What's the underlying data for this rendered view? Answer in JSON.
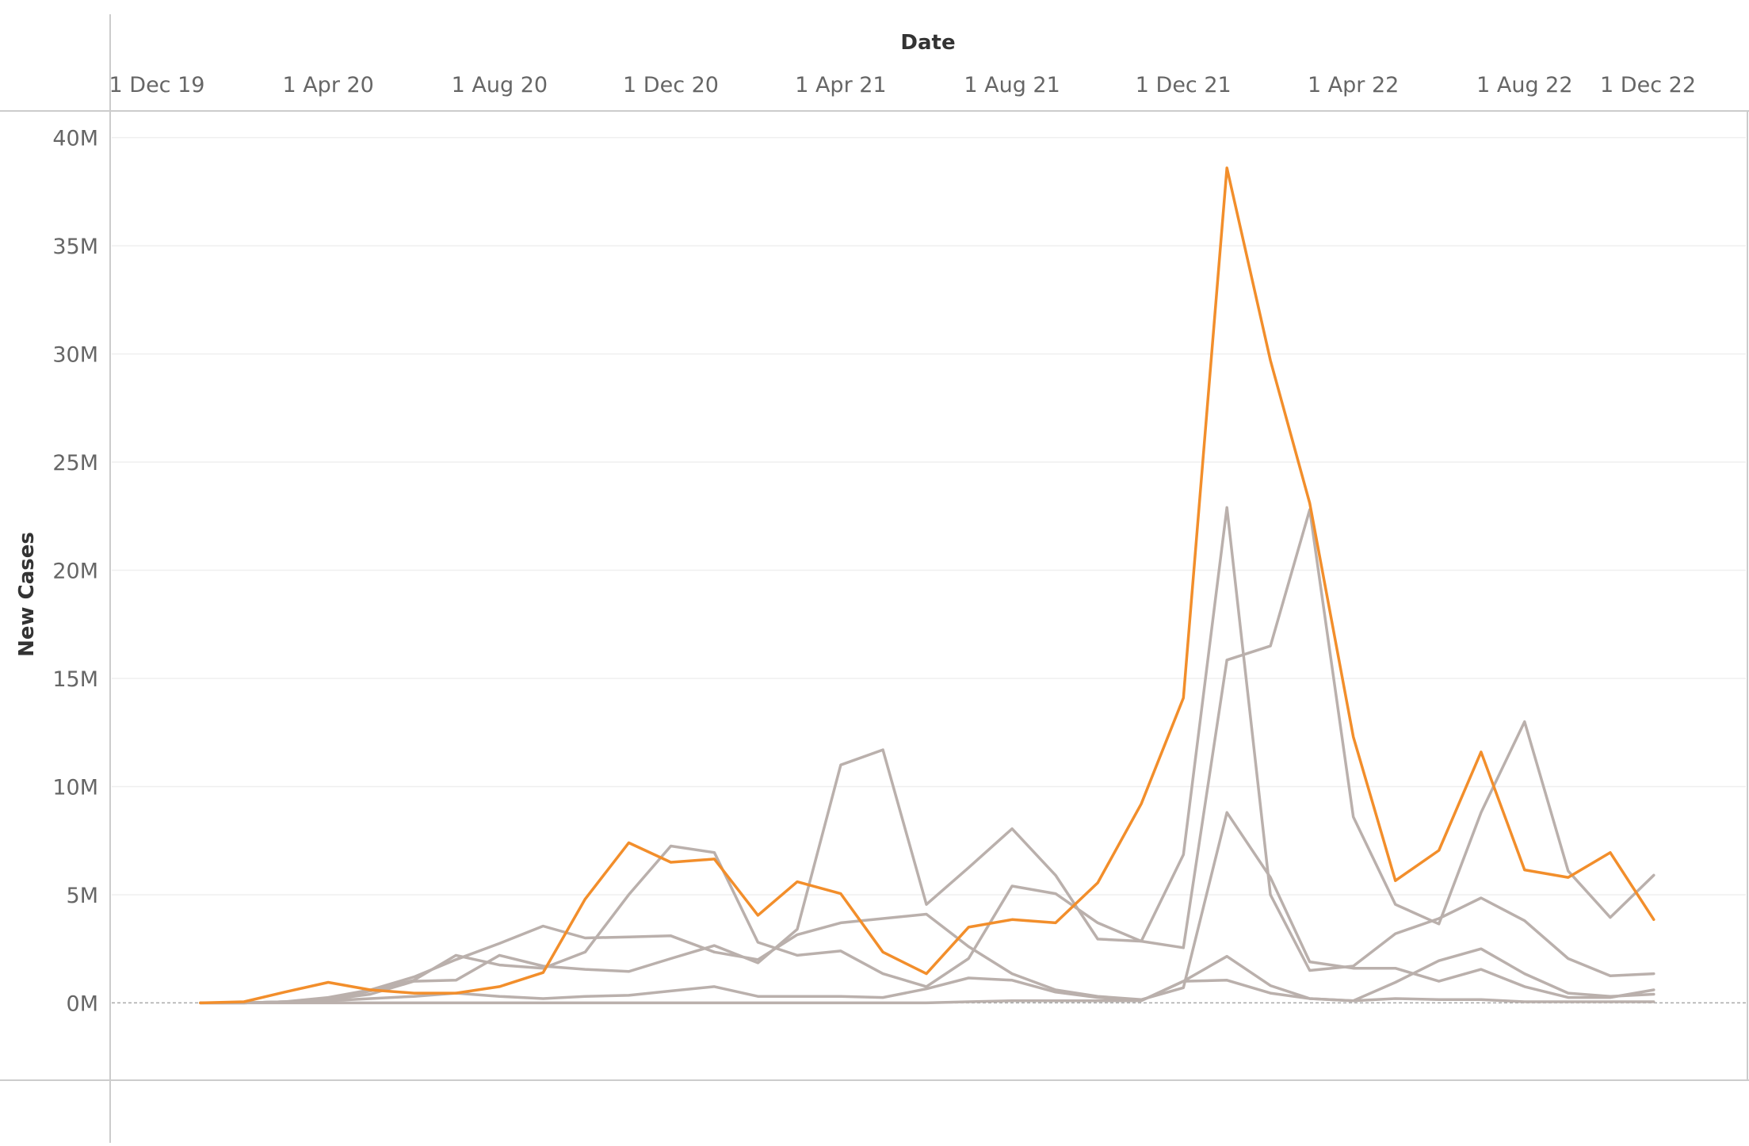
{
  "chart_data": {
    "type": "line",
    "xlabel": "Date",
    "ylabel": "New Cases",
    "x_ticks": [
      "1 Dec 19",
      "1 Apr 20",
      "1 Aug 20",
      "1 Dec 20",
      "1 Apr 21",
      "1 Aug 21",
      "1 Dec 21",
      "1 Apr 22",
      "1 Aug 22",
      "1 Dec 22"
    ],
    "y_ticks": [
      "0M",
      "5M",
      "10M",
      "15M",
      "20M",
      "25M",
      "30M",
      "35M",
      "40M"
    ],
    "ylim": [
      -2,
      40.5
    ],
    "xlim": [
      "2019-12-01",
      "2022-12-01"
    ],
    "grid": true,
    "highlight_color": "#f28e2b",
    "other_color": "#bab0ac",
    "x": [
      "2020-01-01",
      "2020-02-01",
      "2020-03-01",
      "2020-04-01",
      "2020-05-01",
      "2020-06-01",
      "2020-07-01",
      "2020-08-01",
      "2020-09-01",
      "2020-10-01",
      "2020-11-01",
      "2020-12-01",
      "2021-01-01",
      "2021-02-01",
      "2021-03-01",
      "2021-04-01",
      "2021-05-01",
      "2021-06-01",
      "2021-07-01",
      "2021-08-01",
      "2021-09-01",
      "2021-10-01",
      "2021-11-01",
      "2021-12-01",
      "2022-01-01",
      "2022-02-01",
      "2022-03-01",
      "2022-04-01",
      "2022-05-01",
      "2022-06-01",
      "2022-07-01",
      "2022-08-01",
      "2022-09-01",
      "2022-10-01",
      "2022-11-01"
    ],
    "series": [
      {
        "highlight": true,
        "values": [
          0,
          0.05,
          0.5,
          0.95,
          0.6,
          0.45,
          0.45,
          0.75,
          1.4,
          4.8,
          7.4,
          6.5,
          6.65,
          4.05,
          5.6,
          5.05,
          2.35,
          1.35,
          3.5,
          3.85,
          3.7,
          5.55,
          9.2,
          14.1,
          38.6,
          29.7,
          23.1,
          12.3,
          5.65,
          7.05,
          11.6,
          6.15,
          5.8,
          6.95,
          3.85
        ]
      },
      {
        "highlight": false,
        "values": [
          0,
          0,
          0.05,
          0.25,
          0.6,
          1.2,
          2.0,
          2.75,
          3.55,
          3.0,
          3.05,
          3.1,
          2.35,
          2.0,
          3.15,
          3.7,
          3.9,
          4.1,
          2.6,
          1.35,
          0.6,
          0.3,
          0.15,
          0.7,
          8.8,
          5.8,
          1.9,
          1.6,
          1.6,
          1.0,
          1.55,
          0.75,
          0.25,
          0.25,
          0.6
        ]
      },
      {
        "highlight": false,
        "values": [
          0,
          0,
          0.05,
          0.15,
          0.55,
          1.05,
          2.2,
          1.75,
          1.6,
          2.35,
          5.0,
          7.25,
          6.95,
          2.8,
          2.2,
          2.4,
          1.35,
          0.75,
          2.05,
          5.4,
          5.05,
          3.7,
          2.85,
          2.55,
          15.85,
          16.5,
          22.8,
          8.6,
          4.55,
          3.65,
          8.8,
          13.0,
          6.1,
          3.95,
          5.9
        ]
      },
      {
        "highlight": false,
        "values": [
          0,
          0,
          0.05,
          0.15,
          0.4,
          1.0,
          1.05,
          2.2,
          1.7,
          1.55,
          1.45,
          2.05,
          2.65,
          1.85,
          3.4,
          11.0,
          11.7,
          4.55,
          6.25,
          8.05,
          5.9,
          2.95,
          2.85,
          6.85,
          22.9,
          5.0,
          1.5,
          1.7,
          3.2,
          3.9,
          4.85,
          3.8,
          2.05,
          1.25,
          1.35
        ]
      },
      {
        "highlight": false,
        "values": [
          0,
          0,
          0.05,
          0.1,
          0.2,
          0.3,
          0.45,
          0.3,
          0.2,
          0.3,
          0.35,
          0.55,
          0.75,
          0.3,
          0.3,
          0.3,
          0.25,
          0.65,
          1.15,
          1.05,
          0.5,
          0.25,
          0.1,
          1.0,
          2.15,
          0.8,
          0.2,
          0.1,
          0.95,
          1.95,
          2.5,
          1.35,
          0.45,
          0.3,
          0.4
        ]
      },
      {
        "highlight": false,
        "values": [
          0,
          0,
          0,
          0,
          0,
          0,
          0,
          0,
          0,
          0,
          0,
          0,
          0,
          0,
          0,
          0,
          0,
          0,
          0.05,
          0.1,
          0.1,
          0.1,
          0.1,
          1.0,
          1.05,
          0.45,
          0.2,
          0.1,
          0.2,
          0.15,
          0.15,
          0.05,
          0.05,
          0.05,
          0.05
        ]
      }
    ]
  }
}
